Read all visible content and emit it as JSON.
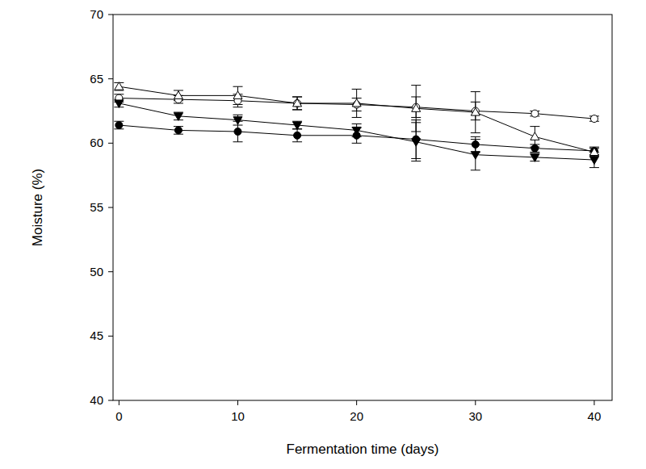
{
  "chart_data": {
    "type": "line",
    "x_label": "Fermentation time (days)",
    "y_label": "Moisture (%)",
    "x": [
      0,
      5,
      10,
      15,
      20,
      25,
      30,
      35,
      40
    ],
    "xlim": [
      -0.5,
      41.5
    ],
    "xticks": [
      0,
      10,
      20,
      30,
      40
    ],
    "ylim": [
      40,
      70
    ],
    "yticks": [
      40,
      45,
      50,
      55,
      60,
      65,
      70
    ],
    "grid": false,
    "series": [
      {
        "color": "#000000",
        "marker": "circle",
        "line_style": "solid",
        "values": [
          61.4,
          61.0,
          60.9,
          60.6,
          60.6,
          60.3,
          59.9,
          59.6,
          59.4
        ],
        "errors": [
          0.3,
          0.3,
          0.8,
          0.5,
          0.6,
          1.5,
          0.6,
          0.3,
          0.3
        ]
      },
      {
        "color": "#000000",
        "marker": "circle-open",
        "line_style": "solid",
        "values": [
          63.5,
          63.4,
          63.3,
          63.1,
          63.0,
          62.8,
          62.5,
          62.3,
          61.9
        ],
        "errors": [
          0.3,
          0.3,
          0.5,
          0.5,
          0.5,
          0.8,
          0.7,
          0.2,
          0.2
        ]
      },
      {
        "color": "#000000",
        "marker": "triangle-down",
        "line_style": "solid",
        "values": [
          63.1,
          62.1,
          61.8,
          61.4,
          61.0,
          60.1,
          59.1,
          58.9,
          58.7
        ],
        "errors": [
          0.3,
          0.3,
          0.4,
          0.3,
          0.5,
          1.5,
          1.2,
          0.3,
          0.6
        ]
      },
      {
        "color": "#000000",
        "marker": "triangle-up-open",
        "line_style": "solid",
        "values": [
          64.4,
          63.7,
          63.7,
          63.1,
          63.1,
          62.7,
          62.4,
          60.5,
          59.3
        ],
        "errors": [
          0.3,
          0.4,
          0.7,
          0.5,
          1.1,
          1.8,
          1.6,
          0.8,
          0.3
        ]
      }
    ]
  }
}
